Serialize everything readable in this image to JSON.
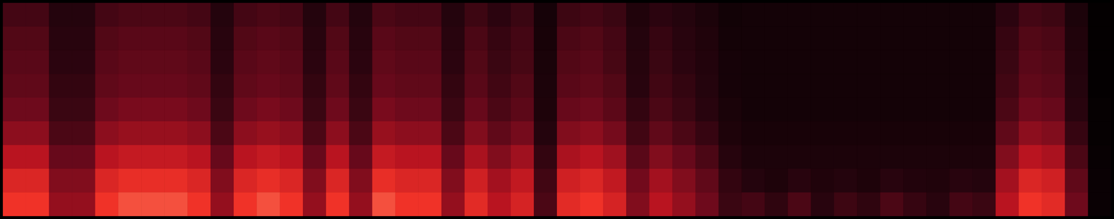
{
  "chart_data": {
    "type": "heatmap",
    "tick_labels": false,
    "zlim": [
      0,
      1
    ],
    "cells": [
      [
        0.28,
        0.28,
        0.18,
        0.18,
        0.28,
        0.3,
        0.3,
        0.3,
        0.28,
        0.18,
        0.28,
        0.3,
        0.28,
        0.18,
        0.28,
        0.18,
        0.3,
        0.28,
        0.28,
        0.18,
        0.26,
        0.21,
        0.25,
        0.11,
        0.26,
        0.28,
        0.25,
        0.16,
        0.21,
        0.18,
        0.14,
        0.09,
        0.1,
        0.1,
        0.1,
        0.1,
        0.1,
        0.1,
        0.1,
        0.1,
        0.1,
        0.1,
        0.1,
        0.21,
        0.28,
        0.26,
        0.14,
        0.02
      ],
      [
        0.32,
        0.32,
        0.2,
        0.2,
        0.32,
        0.34,
        0.34,
        0.34,
        0.32,
        0.2,
        0.32,
        0.34,
        0.32,
        0.2,
        0.32,
        0.2,
        0.34,
        0.32,
        0.32,
        0.2,
        0.3,
        0.24,
        0.28,
        0.12,
        0.3,
        0.32,
        0.28,
        0.18,
        0.24,
        0.2,
        0.16,
        0.1,
        0.1,
        0.1,
        0.1,
        0.1,
        0.1,
        0.1,
        0.1,
        0.1,
        0.1,
        0.1,
        0.1,
        0.24,
        0.32,
        0.3,
        0.16,
        0.02
      ],
      [
        0.34,
        0.34,
        0.21,
        0.21,
        0.34,
        0.36,
        0.36,
        0.36,
        0.34,
        0.21,
        0.34,
        0.36,
        0.34,
        0.21,
        0.34,
        0.21,
        0.36,
        0.34,
        0.34,
        0.21,
        0.32,
        0.25,
        0.29,
        0.13,
        0.32,
        0.34,
        0.29,
        0.19,
        0.25,
        0.21,
        0.17,
        0.11,
        0.1,
        0.1,
        0.1,
        0.1,
        0.1,
        0.1,
        0.1,
        0.1,
        0.1,
        0.1,
        0.1,
        0.25,
        0.34,
        0.32,
        0.17,
        0.02
      ],
      [
        0.36,
        0.36,
        0.23,
        0.23,
        0.36,
        0.38,
        0.38,
        0.38,
        0.36,
        0.23,
        0.36,
        0.38,
        0.36,
        0.23,
        0.36,
        0.23,
        0.38,
        0.36,
        0.36,
        0.23,
        0.34,
        0.27,
        0.32,
        0.14,
        0.34,
        0.36,
        0.32,
        0.2,
        0.27,
        0.23,
        0.18,
        0.11,
        0.1,
        0.1,
        0.1,
        0.1,
        0.1,
        0.1,
        0.1,
        0.1,
        0.1,
        0.1,
        0.1,
        0.27,
        0.36,
        0.34,
        0.18,
        0.02
      ],
      [
        0.4,
        0.4,
        0.25,
        0.25,
        0.4,
        0.43,
        0.43,
        0.43,
        0.4,
        0.25,
        0.4,
        0.43,
        0.4,
        0.25,
        0.4,
        0.25,
        0.43,
        0.4,
        0.4,
        0.25,
        0.38,
        0.3,
        0.35,
        0.15,
        0.38,
        0.4,
        0.35,
        0.23,
        0.3,
        0.25,
        0.2,
        0.13,
        0.1,
        0.1,
        0.1,
        0.1,
        0.1,
        0.1,
        0.1,
        0.1,
        0.1,
        0.1,
        0.1,
        0.3,
        0.4,
        0.38,
        0.2,
        0.03
      ],
      [
        0.48,
        0.48,
        0.3,
        0.3,
        0.48,
        0.51,
        0.51,
        0.51,
        0.48,
        0.3,
        0.48,
        0.51,
        0.48,
        0.3,
        0.48,
        0.3,
        0.51,
        0.48,
        0.48,
        0.3,
        0.45,
        0.36,
        0.42,
        0.18,
        0.45,
        0.48,
        0.42,
        0.27,
        0.36,
        0.3,
        0.24,
        0.15,
        0.12,
        0.12,
        0.12,
        0.12,
        0.12,
        0.12,
        0.12,
        0.12,
        0.12,
        0.12,
        0.12,
        0.36,
        0.48,
        0.45,
        0.24,
        0.03
      ],
      [
        0.6,
        0.6,
        0.38,
        0.38,
        0.6,
        0.64,
        0.64,
        0.64,
        0.6,
        0.38,
        0.6,
        0.64,
        0.6,
        0.38,
        0.6,
        0.38,
        0.64,
        0.6,
        0.6,
        0.38,
        0.56,
        0.45,
        0.53,
        0.23,
        0.56,
        0.6,
        0.53,
        0.34,
        0.45,
        0.38,
        0.3,
        0.19,
        0.14,
        0.14,
        0.14,
        0.14,
        0.14,
        0.14,
        0.14,
        0.14,
        0.14,
        0.14,
        0.14,
        0.45,
        0.6,
        0.56,
        0.3,
        0.04
      ],
      [
        0.72,
        0.72,
        0.45,
        0.45,
        0.72,
        0.77,
        0.77,
        0.77,
        0.72,
        0.45,
        0.72,
        0.77,
        0.72,
        0.45,
        0.72,
        0.45,
        0.77,
        0.72,
        0.72,
        0.45,
        0.68,
        0.54,
        0.63,
        0.27,
        0.68,
        0.72,
        0.63,
        0.41,
        0.54,
        0.45,
        0.36,
        0.23,
        0.18,
        0.15,
        0.2,
        0.16,
        0.18,
        0.15,
        0.2,
        0.17,
        0.16,
        0.2,
        0.18,
        0.54,
        0.72,
        0.68,
        0.36,
        0.05
      ],
      [
        0.8,
        0.8,
        0.5,
        0.5,
        0.8,
        0.85,
        0.85,
        0.85,
        0.8,
        0.5,
        0.8,
        0.85,
        0.8,
        0.5,
        0.8,
        0.5,
        0.85,
        0.8,
        0.8,
        0.5,
        0.75,
        0.6,
        0.7,
        0.3,
        0.75,
        0.8,
        0.7,
        0.45,
        0.6,
        0.5,
        0.4,
        0.25,
        0.28,
        0.22,
        0.3,
        0.2,
        0.26,
        0.22,
        0.3,
        0.24,
        0.2,
        0.28,
        0.25,
        0.6,
        0.8,
        0.75,
        0.4,
        0.05
      ]
    ]
  }
}
